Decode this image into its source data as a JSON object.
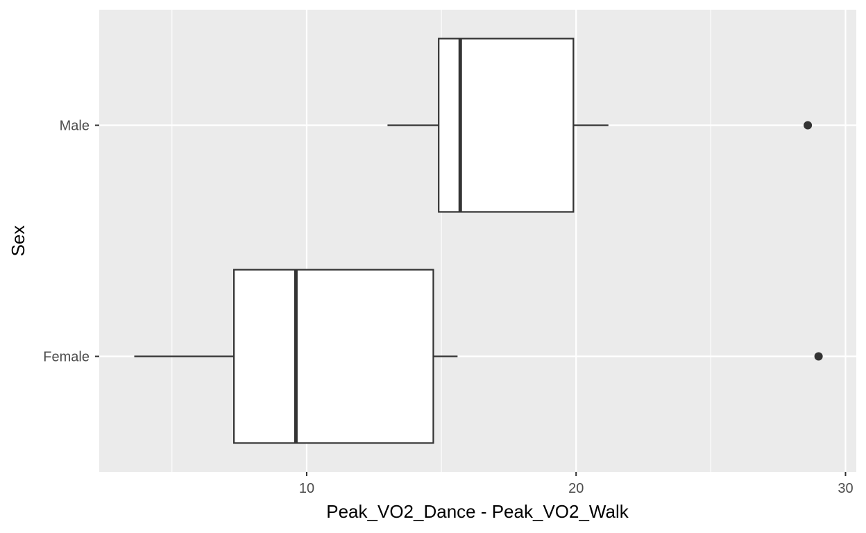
{
  "chart_data": {
    "type": "boxplot",
    "orientation": "horizontal",
    "xlabel": "Peak_VO2_Dance - Peak_VO2_Walk",
    "ylabel": "Sex",
    "xlim": [
      2.3,
      30.4
    ],
    "x_ticks": [
      10,
      20,
      30
    ],
    "x_minor_ticks": [
      5,
      15,
      25
    ],
    "categories": [
      "Female",
      "Male"
    ],
    "grid": true,
    "legend": "none",
    "colors": {
      "panel": "#ebebeb",
      "grid": "#ffffff",
      "box_fill": "#ffffff",
      "box_line": "#333333"
    },
    "boxes": [
      {
        "category": "Female",
        "whisker_low": 3.6,
        "q1": 7.3,
        "median": 9.6,
        "q3": 14.7,
        "whisker_high": 15.6,
        "outliers": [
          29.0
        ]
      },
      {
        "category": "Male",
        "whisker_low": 13.0,
        "q1": 14.9,
        "median": 15.7,
        "q3": 19.9,
        "whisker_high": 21.2,
        "outliers": [
          28.6
        ]
      }
    ]
  }
}
